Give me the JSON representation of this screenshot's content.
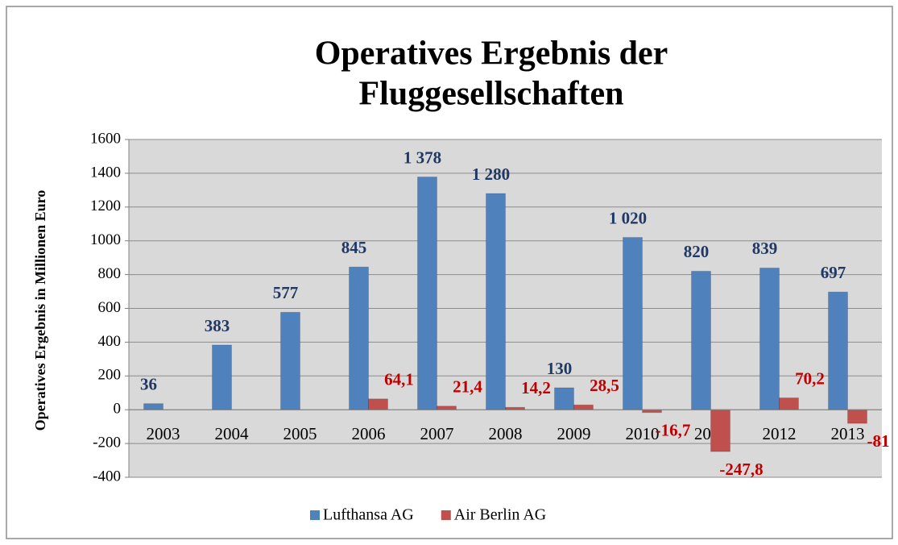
{
  "chart_data": {
    "type": "bar",
    "title": [
      "Operatives Ergebnis der",
      "Fluggesellschaften"
    ],
    "y_label": "Operatives Ergebnis in Millionen Euro",
    "categories": [
      "2003",
      "2004",
      "2005",
      "2006",
      "2007",
      "2008",
      "2009",
      "2010",
      "2011",
      "2012",
      "2013"
    ],
    "series": [
      {
        "name": "Lufthansa AG",
        "color": "#4f81bd",
        "label_color": "#1f3864",
        "values": [
          36,
          383,
          577,
          845,
          1378,
          1280,
          130,
          1020,
          820,
          839,
          697
        ],
        "value_labels": [
          "36",
          "383",
          "577",
          "845",
          "1 378",
          "1 280",
          "130",
          "1 020",
          "820",
          "839",
          "697"
        ]
      },
      {
        "name": "Air Berlin AG",
        "color": "#c0504d",
        "label_color": "#c00000",
        "values": [
          null,
          null,
          null,
          64.1,
          21.4,
          14.2,
          28.5,
          -16.7,
          -247.8,
          70.2,
          -81
        ],
        "value_labels": [
          null,
          null,
          null,
          "64,1",
          "21,4",
          "14,2",
          "28,5",
          "-16,7",
          "-247,8",
          "70,2",
          "-81"
        ]
      }
    ],
    "ylim": [
      -400,
      1600
    ],
    "yticks": [
      -400,
      -200,
      0,
      200,
      400,
      600,
      800,
      1000,
      1200,
      1400,
      1600
    ],
    "grid": true,
    "legend": "bottom"
  }
}
